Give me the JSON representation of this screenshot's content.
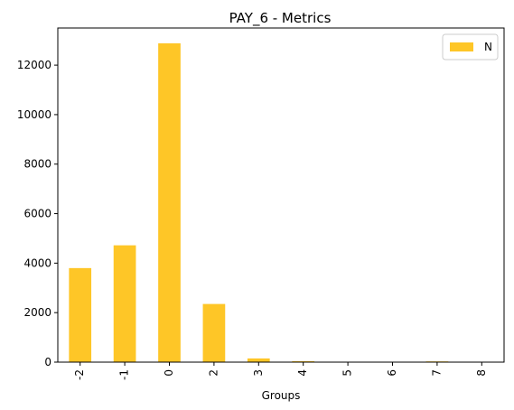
{
  "chart_data": {
    "type": "bar",
    "title": "PAY_6 - Metrics",
    "xlabel": "Groups",
    "ylabel": "",
    "categories": [
      "-2",
      "-1",
      "0",
      "2",
      "3",
      "4",
      "5",
      "6",
      "7",
      "8"
    ],
    "series": [
      {
        "name": "N",
        "color": "#fec627",
        "values": [
          3800,
          4720,
          12880,
          2350,
          150,
          40,
          15,
          10,
          30,
          5
        ]
      }
    ],
    "ylim": [
      0,
      13500
    ],
    "yticks": [
      0,
      2000,
      4000,
      6000,
      8000,
      10000,
      12000
    ],
    "grid": false,
    "legend_position": "top-right"
  }
}
